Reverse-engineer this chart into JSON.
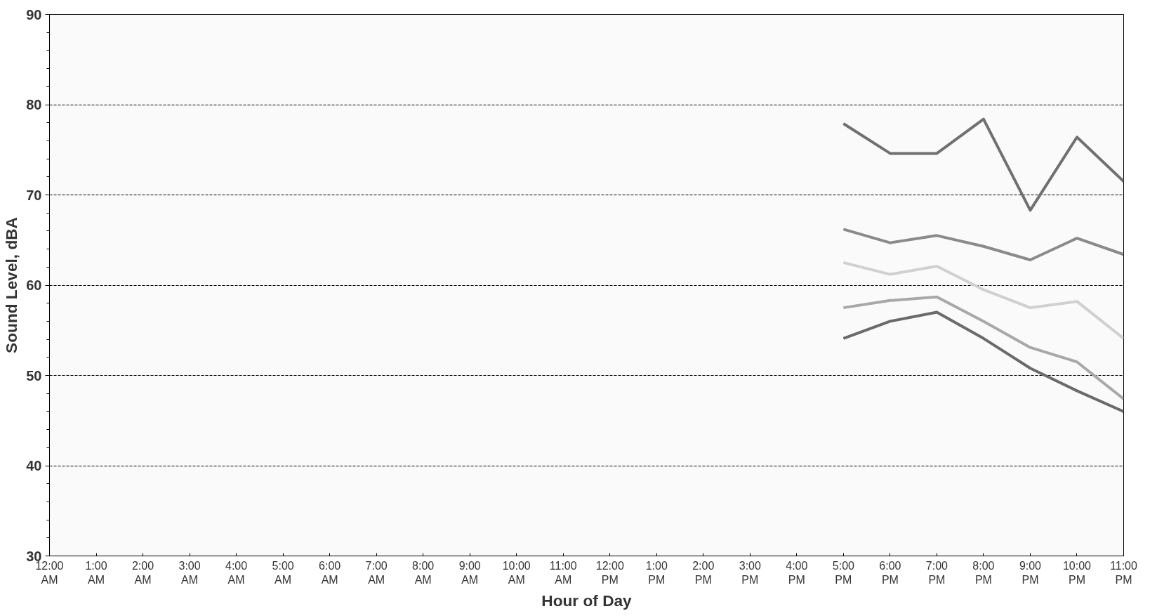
{
  "chart_data": {
    "type": "line",
    "xlabel": "Hour of Day",
    "ylabel": "Sound Level, dBA",
    "categories": [
      "12:00 AM",
      "1:00 AM",
      "2:00 AM",
      "3:00 AM",
      "4:00 AM",
      "5:00 AM",
      "6:00 AM",
      "7:00 AM",
      "8:00 AM",
      "9:00 AM",
      "10:00 AM",
      "11:00 AM",
      "12:00 PM",
      "1:00 PM",
      "2:00 PM",
      "3:00 PM",
      "4:00 PM",
      "5:00 PM",
      "6:00 PM",
      "7:00 PM",
      "8:00 PM",
      "9:00 PM",
      "10:00 PM",
      "11:00 PM"
    ],
    "series": [
      {
        "color": "#707070",
        "values": [
          null,
          null,
          null,
          null,
          null,
          null,
          null,
          null,
          null,
          null,
          null,
          null,
          null,
          null,
          null,
          null,
          null,
          77.9,
          74.6,
          74.6,
          78.4,
          68.3,
          76.4,
          71.5
        ]
      },
      {
        "color": "#8a8a8a",
        "values": [
          null,
          null,
          null,
          null,
          null,
          null,
          null,
          null,
          null,
          null,
          null,
          null,
          null,
          null,
          null,
          null,
          null,
          66.2,
          64.7,
          65.5,
          64.3,
          62.8,
          65.2,
          63.4
        ]
      },
      {
        "color": "#d0d0d0",
        "values": [
          null,
          null,
          null,
          null,
          null,
          null,
          null,
          null,
          null,
          null,
          null,
          null,
          null,
          null,
          null,
          null,
          null,
          62.5,
          61.2,
          62.1,
          59.5,
          57.5,
          58.2,
          54.1
        ]
      },
      {
        "color": "#a8a8a8",
        "values": [
          null,
          null,
          null,
          null,
          null,
          null,
          null,
          null,
          null,
          null,
          null,
          null,
          null,
          null,
          null,
          null,
          null,
          57.5,
          58.3,
          58.7,
          56.0,
          53.1,
          51.5,
          47.4
        ]
      },
      {
        "color": "#6a6a6a",
        "values": [
          null,
          null,
          null,
          null,
          null,
          null,
          null,
          null,
          null,
          null,
          null,
          null,
          null,
          null,
          null,
          null,
          null,
          54.1,
          56.0,
          57.0,
          54.1,
          50.8,
          48.3,
          46.0
        ]
      }
    ],
    "ylim": [
      30,
      90
    ],
    "yticks": [
      30,
      40,
      50,
      60,
      70,
      80,
      90
    ],
    "grid": "y",
    "line_style": "solid",
    "marker": "none"
  }
}
